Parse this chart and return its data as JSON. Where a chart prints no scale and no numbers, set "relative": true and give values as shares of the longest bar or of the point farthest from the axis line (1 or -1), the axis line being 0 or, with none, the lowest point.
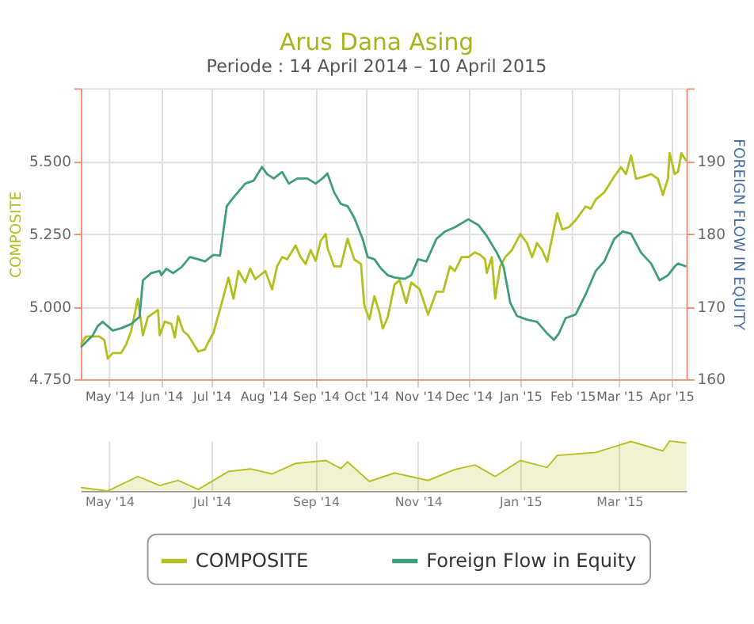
{
  "chart_data": [
    {
      "type": "line",
      "title": "Arus Dana Asing",
      "subtitle": "Periode : 14 April 2014 – 10 April 2015",
      "ylabel": "COMPOSITE",
      "y2label": "FOREIGN FLOW IN EQUITY",
      "xlim": [
        "2014-04-14",
        "2015-04-10"
      ],
      "xticks": [
        {
          "value": "2014-05-01",
          "label": "May '14"
        },
        {
          "value": "2014-06-01",
          "label": "Jun '14"
        },
        {
          "value": "2014-07-01",
          "label": "Jul '14"
        },
        {
          "value": "2014-08-01",
          "label": "Aug '14"
        },
        {
          "value": "2014-09-01",
          "label": "Sep '14"
        },
        {
          "value": "2014-10-01",
          "label": "Oct '14"
        },
        {
          "value": "2014-11-01",
          "label": "Nov '14"
        },
        {
          "value": "2014-12-01",
          "label": "Dec '14"
        },
        {
          "value": "2015-01-01",
          "label": "Jan '15"
        },
        {
          "value": "2015-02-01",
          "label": "Feb '15"
        },
        {
          "value": "2015-03-01",
          "label": "Mar '15"
        },
        {
          "value": "2015-04-01",
          "label": "Apr '15"
        }
      ],
      "ylim": [
        4750,
        5750
      ],
      "yticks": [
        {
          "value": 4750,
          "label": "4.750"
        },
        {
          "value": 5000,
          "label": "5.000"
        },
        {
          "value": 5250,
          "label": "5.250"
        },
        {
          "value": 5500,
          "label": "5.500"
        },
        {
          "value": 5750,
          "label": null
        }
      ],
      "y2lim": [
        160,
        200
      ],
      "y2ticks": [
        {
          "value": 160,
          "label": "160"
        },
        {
          "value": 170,
          "label": "170"
        },
        {
          "value": 180,
          "label": "180"
        },
        {
          "value": 190,
          "label": "190"
        },
        {
          "value": 200,
          "label": null
        }
      ],
      "grid": true,
      "legend": "bottom",
      "series": [
        {
          "name": "COMPOSITE",
          "color": "#b3bf1d",
          "axis": "y",
          "x": [
            "2014-04-14",
            "2014-04-17",
            "2014-04-25",
            "2014-04-28",
            "2014-04-30",
            "2014-05-03",
            "2014-05-08",
            "2014-05-11",
            "2014-05-14",
            "2014-05-18",
            "2014-05-21",
            "2014-05-24",
            "2014-05-30",
            "2014-05-31",
            "2014-06-03",
            "2014-06-07",
            "2014-06-09",
            "2014-06-11",
            "2014-06-14",
            "2014-06-17",
            "2014-06-23",
            "2014-06-27",
            "2014-06-29",
            "2014-07-02",
            "2014-07-07",
            "2014-07-11",
            "2014-07-14",
            "2014-07-17",
            "2014-07-21",
            "2014-07-24",
            "2014-07-27",
            "2014-08-02",
            "2014-08-06",
            "2014-08-09",
            "2014-08-12",
            "2014-08-15",
            "2014-08-20",
            "2014-08-23",
            "2014-08-26",
            "2014-08-29",
            "2014-09-01",
            "2014-09-04",
            "2014-09-07",
            "2014-09-08",
            "2014-09-12",
            "2014-09-16",
            "2014-09-20",
            "2014-09-24",
            "2014-09-28",
            "2014-09-30",
            "2014-10-03",
            "2014-10-06",
            "2014-10-09",
            "2014-10-11",
            "2014-10-14",
            "2014-10-18",
            "2014-10-21",
            "2014-10-25",
            "2014-10-28",
            "2014-11-02",
            "2014-11-07",
            "2014-11-12",
            "2014-11-16",
            "2014-11-20",
            "2014-11-23",
            "2014-11-27",
            "2014-12-01",
            "2014-12-05",
            "2014-12-08",
            "2014-12-11",
            "2014-12-12",
            "2014-12-15",
            "2014-12-17",
            "2014-12-20",
            "2014-12-23",
            "2014-12-27",
            "2015-01-01",
            "2015-01-05",
            "2015-01-08",
            "2015-01-11",
            "2015-01-14",
            "2015-01-17",
            "2015-01-23",
            "2015-01-26",
            "2015-01-30",
            "2015-02-03",
            "2015-02-09",
            "2015-02-12",
            "2015-02-15",
            "2015-02-20",
            "2015-02-26",
            "2015-03-02",
            "2015-03-05",
            "2015-03-08",
            "2015-03-11",
            "2015-03-16",
            "2015-03-20",
            "2015-03-24",
            "2015-03-27",
            "2015-03-30",
            "2015-03-31",
            "2015-04-03",
            "2015-04-05",
            "2015-04-07",
            "2015-04-10"
          ],
          "values": [
            4869,
            4897,
            4897,
            4885,
            4821,
            4840,
            4840,
            4869,
            4916,
            5027,
            4901,
            4964,
            4988,
            4901,
            4948,
            4940,
            4893,
            4967,
            4916,
            4901,
            4845,
            4853,
            4877,
            4909,
            5012,
            5099,
            5027,
            5122,
            5083,
            5130,
            5094,
            5122,
            5059,
            5138,
            5170,
            5162,
            5210,
            5170,
            5146,
            5194,
            5157,
            5226,
            5249,
            5202,
            5138,
            5138,
            5233,
            5162,
            5146,
            5004,
            4956,
            5035,
            4980,
            4924,
            4964,
            5075,
            5091,
            5012,
            5083,
            5059,
            4972,
            5051,
            5051,
            5138,
            5122,
            5170,
            5170,
            5186,
            5178,
            5162,
            5115,
            5170,
            5027,
            5138,
            5170,
            5194,
            5249,
            5218,
            5170,
            5218,
            5194,
            5154,
            5321,
            5265,
            5273,
            5297,
            5344,
            5336,
            5368,
            5392,
            5447,
            5479,
            5455,
            5519,
            5439,
            5447,
            5455,
            5439,
            5384,
            5439,
            5527,
            5455,
            5463,
            5527,
            5500
          ]
        },
        {
          "name": "Foreign Flow in Equity",
          "color": "#3f9c7c",
          "axis": "y2",
          "x": [
            "2014-04-14",
            "2014-04-21",
            "2014-04-24",
            "2014-04-27",
            "2014-04-30",
            "2014-05-03",
            "2014-05-08",
            "2014-05-14",
            "2014-05-19",
            "2014-05-21",
            "2014-05-26",
            "2014-05-31",
            "2014-06-01",
            "2014-06-04",
            "2014-06-08",
            "2014-06-13",
            "2014-06-18",
            "2014-06-23",
            "2014-06-27",
            "2014-07-02",
            "2014-07-06",
            "2014-07-10",
            "2014-07-14",
            "2014-07-21",
            "2014-07-26",
            "2014-07-31",
            "2014-08-03",
            "2014-08-07",
            "2014-08-12",
            "2014-08-16",
            "2014-08-21",
            "2014-08-27",
            "2014-09-01",
            "2014-09-05",
            "2014-09-08",
            "2014-09-12",
            "2014-09-16",
            "2014-09-20",
            "2014-09-24",
            "2014-09-29",
            "2014-10-02",
            "2014-10-06",
            "2014-10-10",
            "2014-10-14",
            "2014-10-18",
            "2014-10-24",
            "2014-10-28",
            "2014-11-01",
            "2014-11-06",
            "2014-11-12",
            "2014-11-17",
            "2014-11-23",
            "2014-12-01",
            "2014-12-07",
            "2014-12-12",
            "2014-12-18",
            "2014-12-22",
            "2014-12-26",
            "2014-12-30",
            "2015-01-05",
            "2015-01-11",
            "2015-01-17",
            "2015-01-21",
            "2015-01-24",
            "2015-01-28",
            "2015-02-03",
            "2015-02-09",
            "2015-02-15",
            "2015-02-20",
            "2015-02-26",
            "2015-03-03",
            "2015-03-08",
            "2015-03-14",
            "2015-03-20",
            "2015-03-25",
            "2015-03-30",
            "2015-04-03",
            "2015-04-05",
            "2015-04-10"
          ],
          "values": [
            164.4,
            166.0,
            167.3,
            167.9,
            167.3,
            166.7,
            167.0,
            167.6,
            168.6,
            173.6,
            174.6,
            174.9,
            174.3,
            175.2,
            174.6,
            175.4,
            176.8,
            176.5,
            176.2,
            177.1,
            177.0,
            183.8,
            185.0,
            186.9,
            187.3,
            189.2,
            188.2,
            187.6,
            188.5,
            186.9,
            187.6,
            187.6,
            186.9,
            187.6,
            188.3,
            185.7,
            184.1,
            183.8,
            182.2,
            179.3,
            176.8,
            176.5,
            175.2,
            174.3,
            174.0,
            173.8,
            174.3,
            176.5,
            176.2,
            179.3,
            180.3,
            180.9,
            182.0,
            181.2,
            179.7,
            177.4,
            175.5,
            170.5,
            168.7,
            168.2,
            167.9,
            166.3,
            165.4,
            166.3,
            168.4,
            168.9,
            171.7,
            174.9,
            176.2,
            179.3,
            180.3,
            180.0,
            177.4,
            175.9,
            173.6,
            174.3,
            175.5,
            175.9,
            175.5
          ]
        }
      ]
    },
    {
      "type": "area",
      "relative": true,
      "tick_labels": "x",
      "xlim": [
        "2014-04-14",
        "2015-04-10"
      ],
      "xticks": [
        {
          "value": "2014-05-01",
          "label": "May '14"
        },
        {
          "value": "2014-07-01",
          "label": "Jul '14"
        },
        {
          "value": "2014-09-01",
          "label": "Sep '14"
        },
        {
          "value": "2014-11-01",
          "label": "Nov '14"
        },
        {
          "value": "2015-01-01",
          "label": "Jan '15"
        },
        {
          "value": "2015-03-01",
          "label": "Mar '15"
        }
      ],
      "grid": "x",
      "series": [
        {
          "color": "#b3bf1d",
          "x": [
            "2014-04-14",
            "2014-04-30",
            "2014-05-18",
            "2014-05-31",
            "2014-06-11",
            "2014-06-23",
            "2014-07-11",
            "2014-07-24",
            "2014-08-06",
            "2014-08-20",
            "2014-09-07",
            "2014-09-16",
            "2014-09-20",
            "2014-10-03",
            "2014-10-18",
            "2014-11-07",
            "2014-11-23",
            "2014-12-05",
            "2014-12-17",
            "2015-01-01",
            "2015-01-17",
            "2015-01-23",
            "2015-02-15",
            "2015-03-08",
            "2015-03-27",
            "2015-03-31",
            "2015-04-10"
          ],
          "values": [
            0.07,
            0.0,
            0.29,
            0.11,
            0.21,
            0.03,
            0.39,
            0.44,
            0.34,
            0.55,
            0.61,
            0.45,
            0.58,
            0.19,
            0.36,
            0.21,
            0.43,
            0.52,
            0.29,
            0.61,
            0.47,
            0.71,
            0.77,
            0.99,
            0.8,
            1.0,
            0.96
          ]
        }
      ]
    }
  ]
}
